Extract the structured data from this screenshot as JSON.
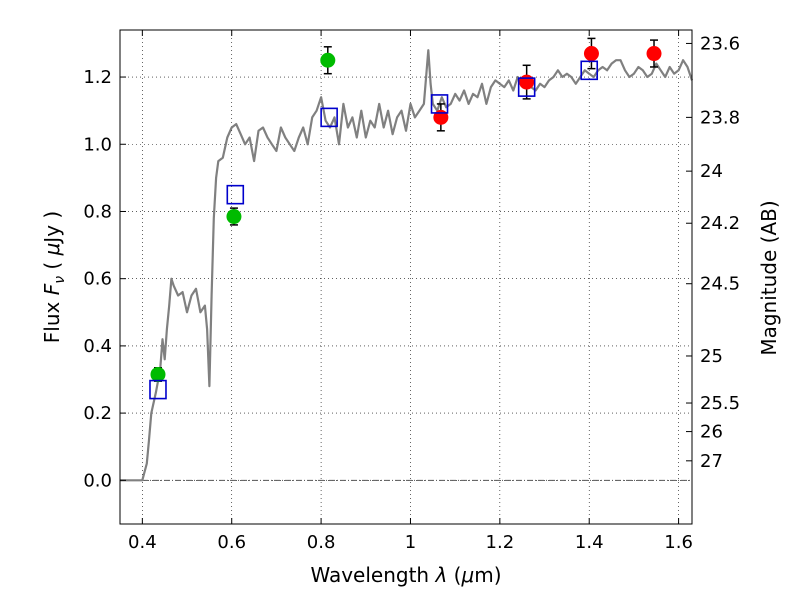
{
  "chart_data": {
    "type": "scatter",
    "xlabel_prefix": "Wavelength ",
    "xlabel_var": "λ",
    "xlabel_unit_pre": " (",
    "xlabel_unit_mu": "μ",
    "xlabel_unit_post": "m)",
    "ylabel_prefix": "Flux ",
    "ylabel_var": "F",
    "ylabel_sub": "ν",
    "ylabel_unit_pre": " ( ",
    "ylabel_unit_mu": "μ",
    "ylabel_unit_post": "Jy )",
    "y2label": "Magnitude (AB)",
    "xlim": [
      0.35,
      1.63
    ],
    "ylim": [
      -0.13,
      1.34
    ],
    "grid": true,
    "x_ticks": [
      0.4,
      0.6,
      0.8,
      1.0,
      1.2,
      1.4,
      1.6
    ],
    "x_tick_labels": [
      "0.4",
      "0.6",
      "0.8",
      "1",
      "1.2",
      "1.4",
      "1.6"
    ],
    "y_ticks": [
      0.0,
      0.2,
      0.4,
      0.6,
      0.8,
      1.0,
      1.2
    ],
    "y_tick_labels": [
      "0.0",
      "0.2",
      "0.4",
      "0.6",
      "0.8",
      "1.0",
      "1.2"
    ],
    "y2_ticks": [
      {
        "label": "23.6",
        "flux": 1.3
      },
      {
        "label": "23.8",
        "flux": 1.08
      },
      {
        "label": "24",
        "flux": 0.92
      },
      {
        "label": "24.2",
        "flux": 0.765
      },
      {
        "label": "24.5",
        "flux": 0.585
      },
      {
        "label": "25",
        "flux": 0.37
      },
      {
        "label": "25.5",
        "flux": 0.23
      },
      {
        "label": "26",
        "flux": 0.145
      },
      {
        "label": "27",
        "flux": 0.058
      }
    ],
    "series": [
      {
        "marker": "line",
        "color": "#808080",
        "x": [
          0.35,
          0.4,
          0.41,
          0.415,
          0.42,
          0.43,
          0.44,
          0.445,
          0.45,
          0.455,
          0.46,
          0.465,
          0.47,
          0.48,
          0.49,
          0.5,
          0.51,
          0.52,
          0.53,
          0.54,
          0.545,
          0.55,
          0.555,
          0.56,
          0.565,
          0.57,
          0.58,
          0.59,
          0.6,
          0.61,
          0.62,
          0.63,
          0.64,
          0.65,
          0.66,
          0.67,
          0.68,
          0.69,
          0.7,
          0.71,
          0.72,
          0.73,
          0.74,
          0.75,
          0.76,
          0.77,
          0.78,
          0.79,
          0.8,
          0.81,
          0.82,
          0.83,
          0.84,
          0.85,
          0.86,
          0.87,
          0.88,
          0.89,
          0.9,
          0.91,
          0.92,
          0.93,
          0.94,
          0.95,
          0.96,
          0.97,
          0.98,
          0.99,
          1.0,
          1.01,
          1.02,
          1.03,
          1.04,
          1.045,
          1.05,
          1.06,
          1.07,
          1.08,
          1.09,
          1.1,
          1.11,
          1.12,
          1.13,
          1.14,
          1.15,
          1.16,
          1.17,
          1.18,
          1.19,
          1.2,
          1.21,
          1.22,
          1.23,
          1.24,
          1.25,
          1.26,
          1.27,
          1.28,
          1.29,
          1.3,
          1.31,
          1.32,
          1.33,
          1.34,
          1.35,
          1.36,
          1.37,
          1.38,
          1.39,
          1.4,
          1.41,
          1.42,
          1.43,
          1.44,
          1.45,
          1.46,
          1.47,
          1.48,
          1.49,
          1.5,
          1.51,
          1.52,
          1.53,
          1.54,
          1.55,
          1.56,
          1.57,
          1.58,
          1.59,
          1.6,
          1.61,
          1.62,
          1.63
        ],
        "y": [
          0.0,
          0.0,
          0.05,
          0.12,
          0.2,
          0.26,
          0.33,
          0.42,
          0.36,
          0.45,
          0.52,
          0.6,
          0.58,
          0.55,
          0.56,
          0.5,
          0.55,
          0.57,
          0.5,
          0.52,
          0.45,
          0.28,
          0.55,
          0.78,
          0.9,
          0.95,
          0.96,
          1.02,
          1.05,
          1.06,
          1.03,
          1.0,
          1.02,
          0.95,
          1.04,
          1.05,
          1.02,
          1.0,
          0.98,
          1.05,
          1.02,
          1.0,
          0.98,
          1.02,
          1.05,
          1.0,
          1.08,
          1.1,
          1.14,
          1.07,
          1.05,
          1.08,
          1.0,
          1.12,
          1.05,
          1.08,
          1.02,
          1.1,
          1.02,
          1.07,
          1.05,
          1.12,
          1.05,
          1.1,
          1.03,
          1.08,
          1.1,
          1.04,
          1.12,
          1.08,
          1.1,
          1.12,
          1.28,
          1.18,
          1.12,
          1.1,
          1.14,
          1.11,
          1.12,
          1.15,
          1.13,
          1.16,
          1.12,
          1.15,
          1.14,
          1.18,
          1.12,
          1.17,
          1.19,
          1.18,
          1.17,
          1.19,
          1.16,
          1.2,
          1.18,
          1.2,
          1.17,
          1.16,
          1.18,
          1.17,
          1.19,
          1.2,
          1.22,
          1.2,
          1.21,
          1.2,
          1.18,
          1.2,
          1.22,
          1.21,
          1.2,
          1.22,
          1.23,
          1.22,
          1.24,
          1.25,
          1.25,
          1.22,
          1.2,
          1.21,
          1.23,
          1.22,
          1.2,
          1.21,
          1.24,
          1.22,
          1.2,
          1.23,
          1.21,
          1.22,
          1.25,
          1.23,
          1.19
        ]
      },
      {
        "marker": "circle",
        "color": "#00bb00",
        "x": [
          0.435,
          0.605,
          0.815
        ],
        "y": [
          0.315,
          0.785,
          1.25
        ],
        "yerr": [
          0.02,
          0.025,
          0.04
        ]
      },
      {
        "marker": "circle",
        "color": "#ff0000",
        "x": [
          1.068,
          1.26,
          1.405,
          1.545
        ],
        "y": [
          1.08,
          1.185,
          1.27,
          1.27
        ],
        "yerr": [
          0.04,
          0.05,
          0.045,
          0.04
        ]
      },
      {
        "marker": "square-open",
        "color": "#0000cc",
        "x": [
          0.435,
          0.608,
          0.818,
          1.065,
          1.26,
          1.4
        ],
        "y": [
          0.27,
          0.85,
          1.08,
          1.12,
          1.17,
          1.22
        ]
      }
    ]
  }
}
